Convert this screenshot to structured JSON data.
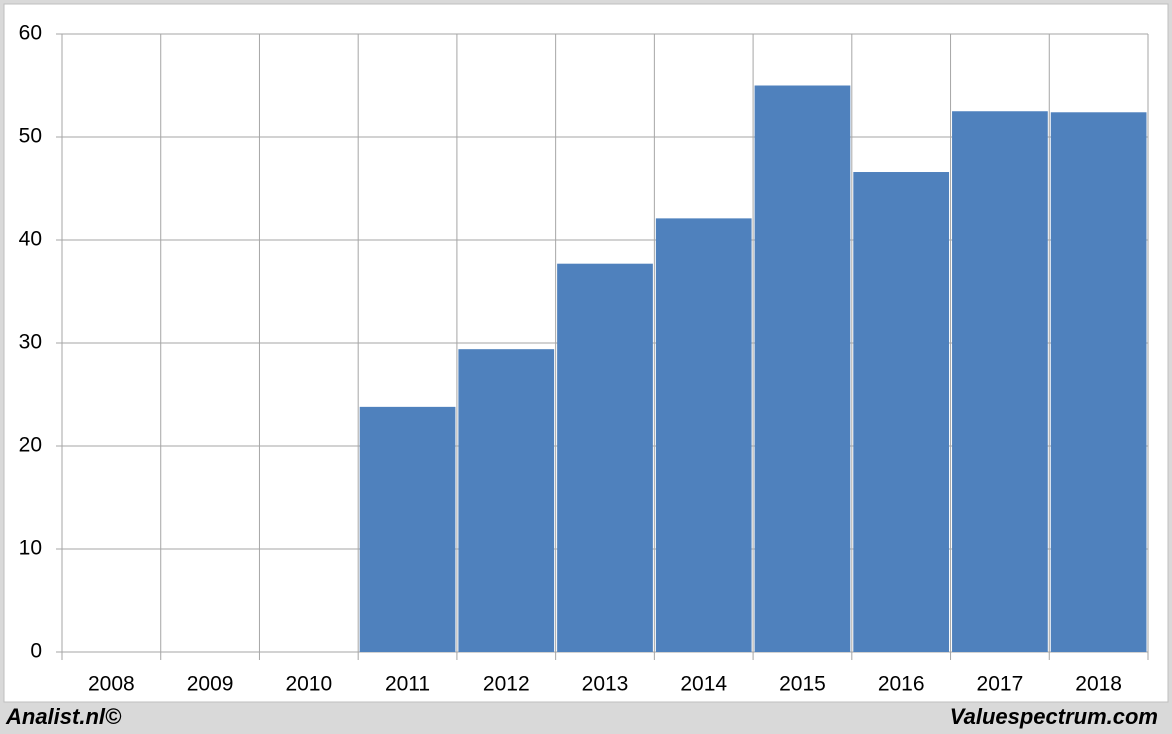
{
  "chart_data": {
    "type": "bar",
    "categories": [
      "2008",
      "2009",
      "2010",
      "2011",
      "2012",
      "2013",
      "2014",
      "2015",
      "2016",
      "2017",
      "2018"
    ],
    "values": [
      null,
      null,
      null,
      23.8,
      29.4,
      37.7,
      42.1,
      55.0,
      46.6,
      52.5,
      52.4
    ],
    "color": "#4f81bd",
    "ylim": [
      0,
      60
    ],
    "yticks": [
      0,
      10,
      20,
      30,
      40,
      50,
      60
    ],
    "grid": true,
    "footer_left": "Analist.nl©",
    "footer_right": "Valuespectrum.com"
  }
}
